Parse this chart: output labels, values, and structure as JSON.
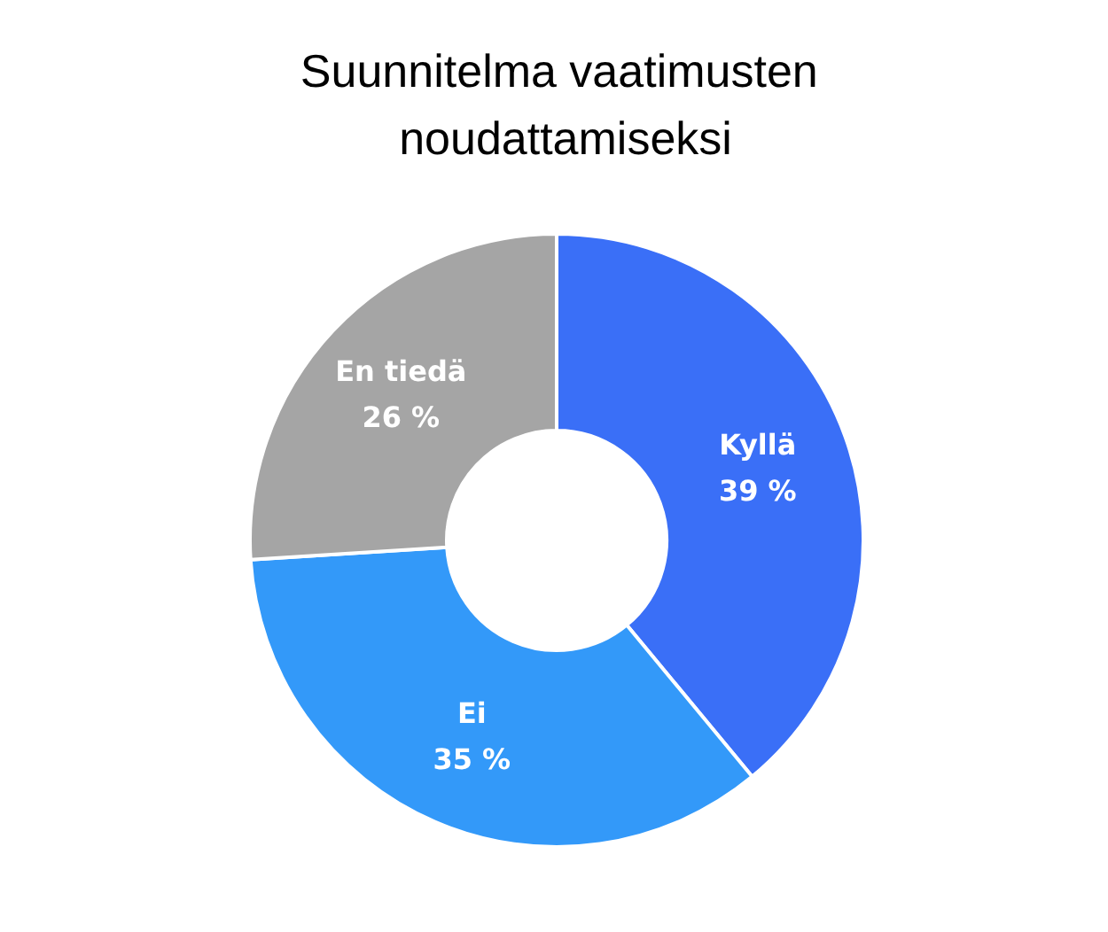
{
  "chart_data": {
    "type": "donut",
    "title": "Suunnitelma vaatimusten noudattamiseksi",
    "categories": [
      "Kyllä",
      "Ei",
      "En tiedä"
    ],
    "values": [
      39,
      35,
      26
    ],
    "value_labels": [
      "39 %",
      "35 %",
      "26 %"
    ],
    "colors": [
      "#3a6ff7",
      "#3399f9",
      "#a5a5a5"
    ],
    "legend": false
  }
}
